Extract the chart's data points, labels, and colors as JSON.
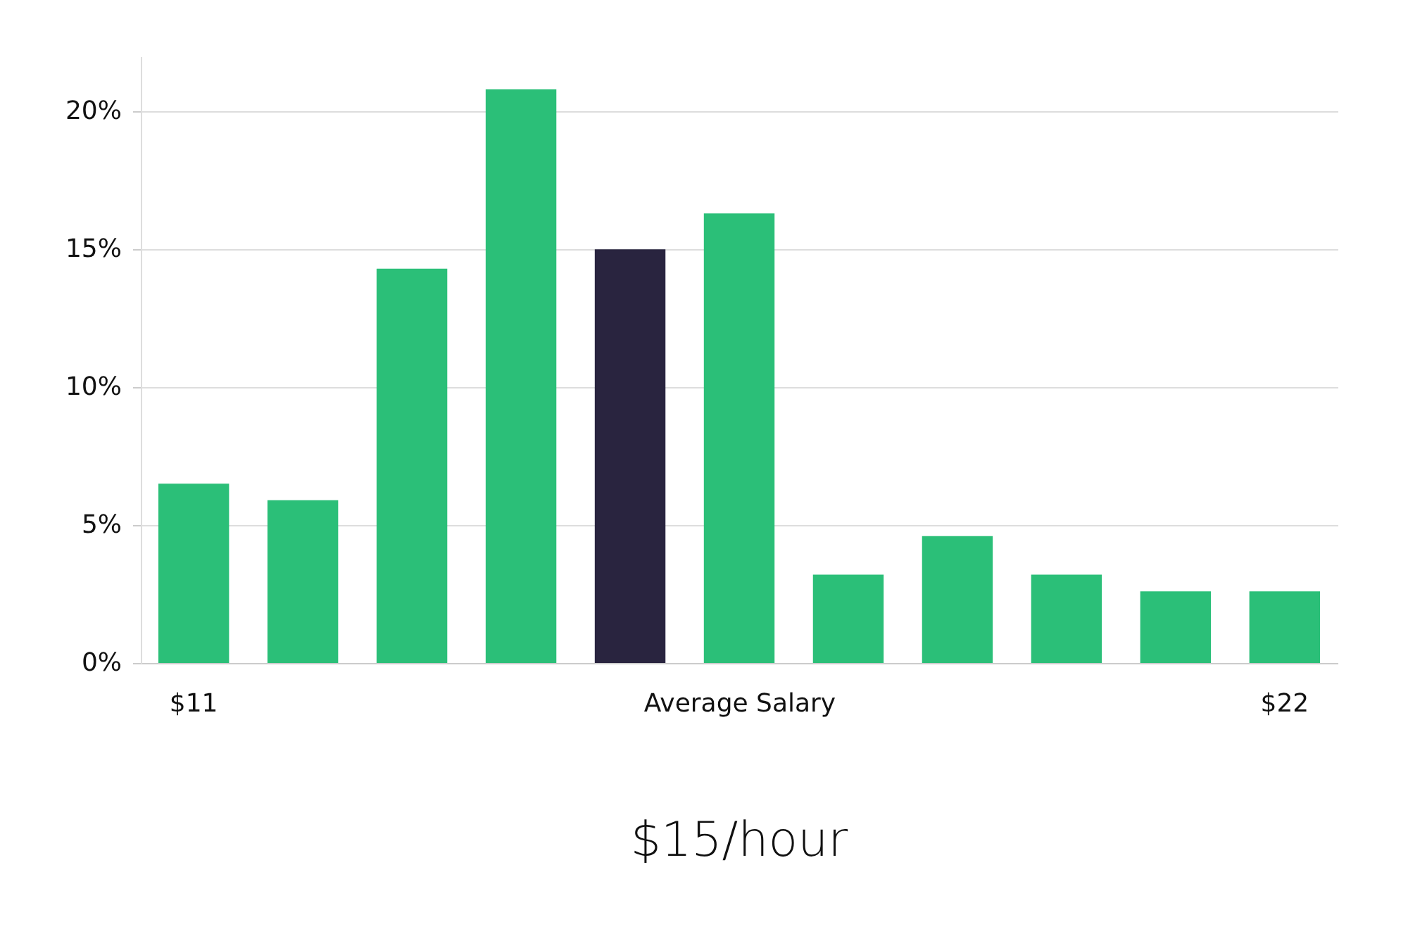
{
  "chart_data": {
    "type": "bar",
    "title": "$15/hour",
    "xlabel": "Average Salary",
    "categories": [
      "$11",
      null,
      null,
      null,
      null,
      null,
      null,
      null,
      null,
      null,
      "$22"
    ],
    "values": [
      6.5,
      5.9,
      14.3,
      20.8,
      15.0,
      16.3,
      3.2,
      4.6,
      3.2,
      2.6,
      2.6
    ],
    "colors": [
      "#2bbf78",
      "#2bbf78",
      "#2bbf78",
      "#2bbf78",
      "#29243f",
      "#2bbf78",
      "#2bbf78",
      "#2bbf78",
      "#2bbf78",
      "#2bbf78",
      "#2bbf78"
    ],
    "ylim": [
      0,
      22
    ],
    "yticks": [
      {
        "value": 0,
        "label": "0%"
      },
      {
        "value": 5,
        "label": "5%"
      },
      {
        "value": 10,
        "label": "10%"
      },
      {
        "value": 15,
        "label": "15%"
      },
      {
        "value": 20,
        "label": "20%"
      }
    ],
    "grid": "y"
  }
}
